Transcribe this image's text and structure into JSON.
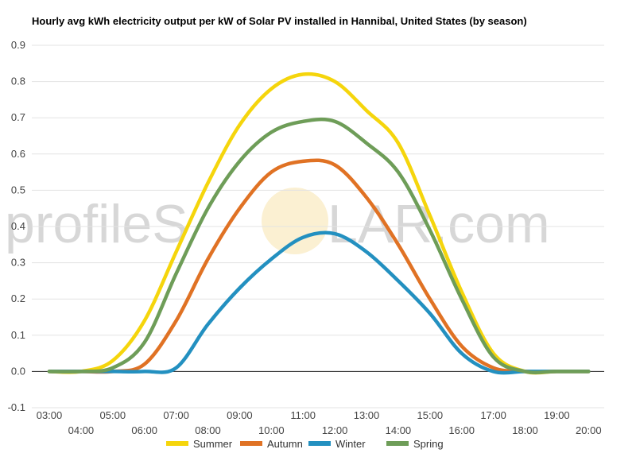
{
  "watermark": {
    "part1": "profileS",
    "part2": "LAR.com"
  },
  "chart_data": {
    "type": "line",
    "title": "Hourly avg kWh electricity output per kW of Solar PV installed in Hannibal, United States (by season)",
    "xlabel": "",
    "ylabel": "",
    "x": [
      "03:00",
      "04:00",
      "05:00",
      "06:00",
      "07:00",
      "08:00",
      "09:00",
      "10:00",
      "11:00",
      "12:00",
      "13:00",
      "14:00",
      "15:00",
      "16:00",
      "17:00",
      "18:00",
      "19:00",
      "20:00"
    ],
    "ylim": [
      -0.1,
      0.9
    ],
    "yticks": [
      "-0.1",
      "0.0",
      "0.1",
      "0.2",
      "0.3",
      "0.4",
      "0.5",
      "0.6",
      "0.7",
      "0.8",
      "0.9"
    ],
    "grid": true,
    "legend_position": "bottom",
    "series": [
      {
        "name": "Summer",
        "color": "#f5d50c",
        "values": [
          0.0,
          0.0,
          0.03,
          0.14,
          0.33,
          0.52,
          0.68,
          0.78,
          0.82,
          0.8,
          0.72,
          0.63,
          0.43,
          0.22,
          0.05,
          0.0,
          0.0,
          0.0
        ]
      },
      {
        "name": "Autumn",
        "color": "#e07224",
        "values": [
          0.0,
          0.0,
          0.0,
          0.02,
          0.14,
          0.31,
          0.45,
          0.55,
          0.58,
          0.57,
          0.48,
          0.35,
          0.2,
          0.07,
          0.01,
          0.0,
          0.0,
          0.0
        ]
      },
      {
        "name": "Winter",
        "color": "#2390c0",
        "values": [
          0.0,
          0.0,
          0.0,
          0.0,
          0.01,
          0.13,
          0.23,
          0.31,
          0.37,
          0.38,
          0.33,
          0.25,
          0.16,
          0.05,
          0.0,
          0.0,
          0.0,
          0.0
        ]
      },
      {
        "name": "Spring",
        "color": "#6e9d58",
        "values": [
          0.0,
          0.0,
          0.01,
          0.08,
          0.27,
          0.45,
          0.58,
          0.66,
          0.69,
          0.69,
          0.63,
          0.55,
          0.39,
          0.2,
          0.04,
          0.0,
          0.0,
          0.0
        ]
      }
    ]
  }
}
